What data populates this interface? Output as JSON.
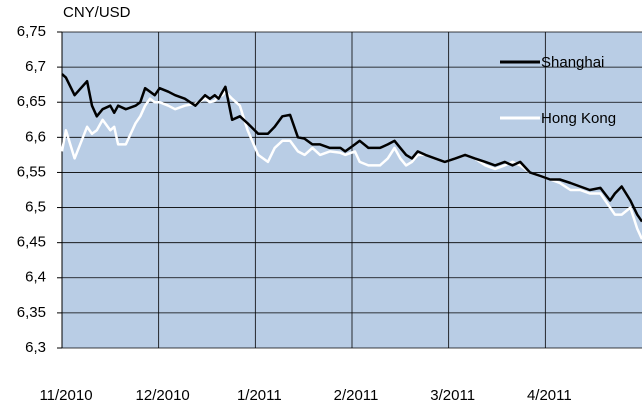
{
  "chart_data": {
    "type": "line",
    "y_label": "CNY/USD",
    "xlim": [
      0,
      6
    ],
    "xticks": [
      {
        "value": 0,
        "label": "11/2010"
      },
      {
        "value": 1,
        "label": "12/2010"
      },
      {
        "value": 2,
        "label": "1/2011"
      },
      {
        "value": 3,
        "label": "2/2011"
      },
      {
        "value": 4,
        "label": "3/2011"
      },
      {
        "value": 5,
        "label": "4/2011"
      }
    ],
    "ylim": [
      6.3,
      6.75
    ],
    "yticks": [
      {
        "value": 6.3,
        "label": "6,3"
      },
      {
        "value": 6.35,
        "label": "6,35"
      },
      {
        "value": 6.4,
        "label": "6,4"
      },
      {
        "value": 6.45,
        "label": "6,45"
      },
      {
        "value": 6.5,
        "label": "6,5"
      },
      {
        "value": 6.55,
        "label": "6,55"
      },
      {
        "value": 6.6,
        "label": "6,6"
      },
      {
        "value": 6.65,
        "label": "6,65"
      },
      {
        "value": 6.7,
        "label": "6,7"
      },
      {
        "value": 6.75,
        "label": "6,75"
      }
    ],
    "grid": true,
    "background": "#b9cde5",
    "legend": "upper right",
    "x": [
      0,
      0.04,
      0.13,
      0.26,
      0.31,
      0.36,
      0.42,
      0.5,
      0.54,
      0.58,
      0.66,
      0.76,
      0.81,
      0.86,
      0.91,
      0.96,
      1.01,
      1.1,
      1.17,
      1.27,
      1.38,
      1.48,
      1.53,
      1.58,
      1.62,
      1.66,
      1.69,
      1.76,
      1.84,
      1.92,
      2.03,
      2.13,
      2.2,
      2.28,
      2.36,
      2.44,
      2.51,
      2.59,
      2.67,
      2.77,
      2.88,
      2.93,
      3.03,
      3.08,
      3.17,
      3.29,
      3.37,
      3.44,
      3.5,
      3.56,
      3.62,
      3.68,
      3.76,
      3.86,
      3.96,
      4.07,
      4.17,
      4.27,
      4.38,
      4.48,
      4.58,
      4.66,
      4.74,
      4.84,
      4.95,
      5.05,
      5.15,
      5.26,
      5.36,
      5.46,
      5.57,
      5.67,
      5.72,
      5.79,
      5.88,
      5.95,
      6.0
    ],
    "series": [
      {
        "name": "Shanghai",
        "color": "#000000",
        "values": [
          6.69,
          6.685,
          6.66,
          6.68,
          6.645,
          6.63,
          6.64,
          6.645,
          6.635,
          6.645,
          6.64,
          6.645,
          6.65,
          6.67,
          6.665,
          6.66,
          6.67,
          6.665,
          6.66,
          6.655,
          6.645,
          6.66,
          6.655,
          6.66,
          6.655,
          6.665,
          6.672,
          6.625,
          6.63,
          6.62,
          6.605,
          6.605,
          6.615,
          6.63,
          6.632,
          6.6,
          6.598,
          6.59,
          6.59,
          6.585,
          6.585,
          6.58,
          6.59,
          6.595,
          6.585,
          6.585,
          6.59,
          6.595,
          6.585,
          6.575,
          6.57,
          6.58,
          6.575,
          6.57,
          6.565,
          6.57,
          6.575,
          6.57,
          6.565,
          6.56,
          6.565,
          6.56,
          6.565,
          6.55,
          6.545,
          6.54,
          6.54,
          6.535,
          6.53,
          6.525,
          6.528,
          6.51,
          6.52,
          6.53,
          6.51,
          6.49,
          6.48
        ]
      },
      {
        "name": "Hong Kong",
        "color": "#ffffff",
        "values": [
          6.58,
          6.61,
          6.57,
          6.615,
          6.605,
          6.61,
          6.625,
          6.61,
          6.615,
          6.59,
          6.59,
          6.62,
          6.63,
          6.645,
          6.655,
          6.65,
          6.65,
          6.645,
          6.64,
          6.645,
          6.648,
          6.655,
          6.65,
          6.652,
          6.658,
          6.66,
          6.665,
          6.655,
          6.645,
          6.61,
          6.575,
          6.565,
          6.585,
          6.595,
          6.595,
          6.58,
          6.575,
          6.585,
          6.575,
          6.58,
          6.578,
          6.575,
          6.58,
          6.565,
          6.56,
          6.56,
          6.57,
          6.585,
          6.57,
          6.56,
          6.565,
          6.575,
          6.575,
          6.57,
          6.565,
          6.57,
          6.575,
          6.57,
          6.56,
          6.555,
          6.56,
          6.565,
          6.56,
          6.55,
          6.545,
          6.54,
          6.535,
          6.525,
          6.525,
          6.52,
          6.52,
          6.5,
          6.49,
          6.49,
          6.5,
          6.47,
          6.455
        ]
      }
    ]
  }
}
